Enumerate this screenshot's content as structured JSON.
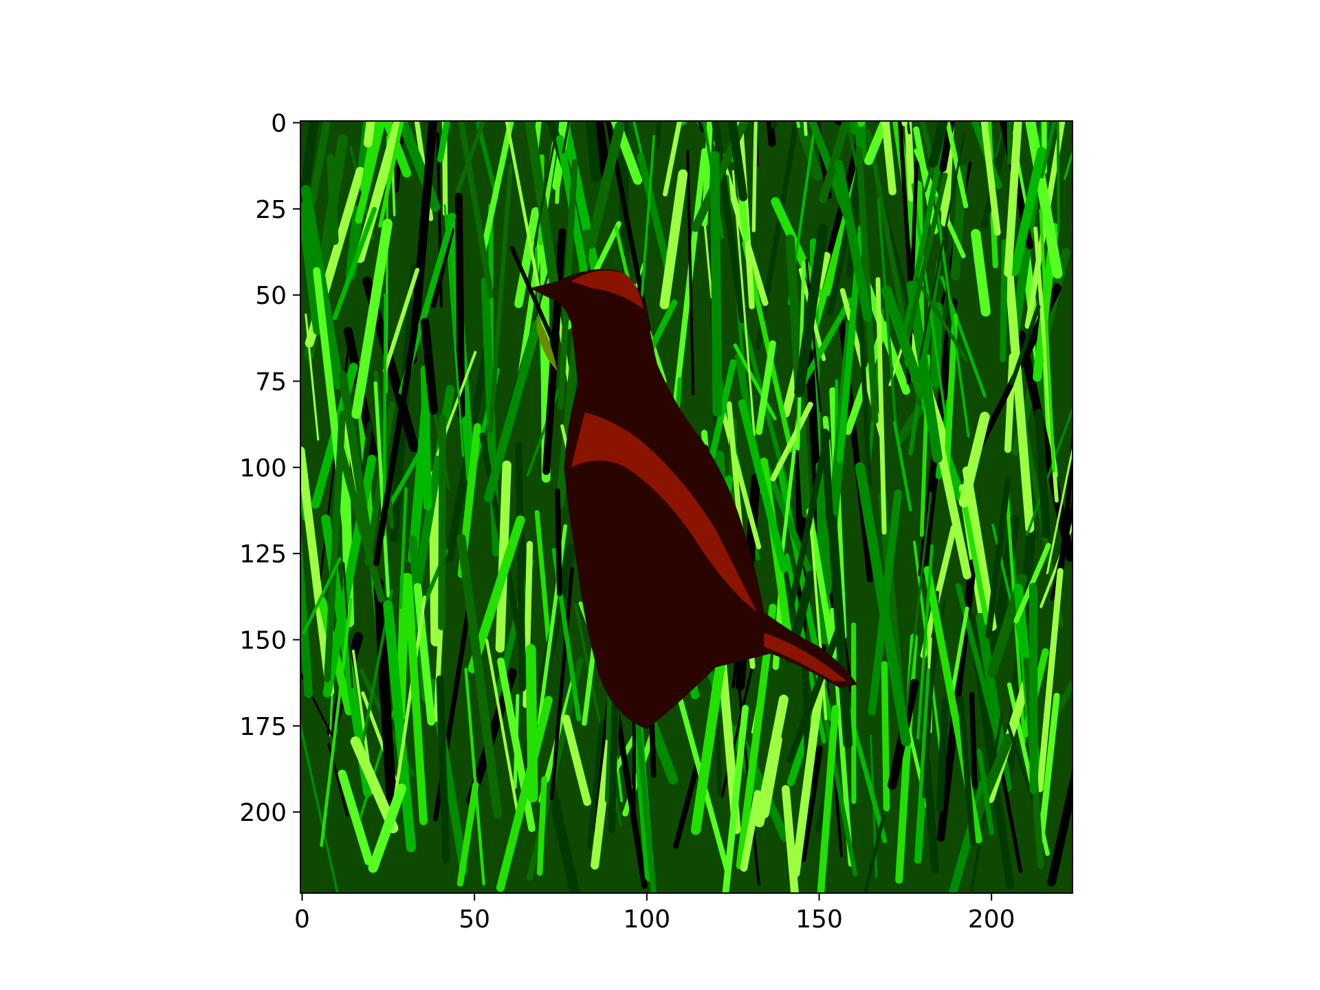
{
  "chart_data": {
    "type": "image",
    "xlim": [
      -0.5,
      223.5
    ],
    "ylim": [
      223.5,
      -0.5
    ],
    "xticks": [
      0,
      50,
      100,
      150,
      200
    ],
    "yticks": [
      0,
      25,
      50,
      75,
      100,
      125,
      150,
      175,
      200
    ]
  }
}
